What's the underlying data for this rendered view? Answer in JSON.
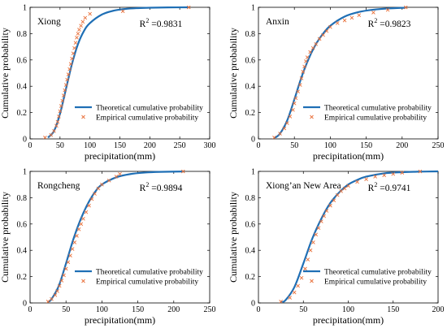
{
  "colors": {
    "theoretical": "#1f6fb5",
    "empirical": "#e8703a",
    "axis": "#000000"
  },
  "legend": {
    "theoretical_label": "Theoretical cumulative probability",
    "empirical_label": "Empirical cumulative probability",
    "placement": "bottom-right"
  },
  "chart_data": [
    {
      "type": "line",
      "title": "Xiong",
      "r2_prefix": "R",
      "r2_sup": "2",
      "r2_value": " =0.9831",
      "xlabel": "precipitation(mm)",
      "ylabel": "Cumulative probability",
      "xlim": [
        0,
        300
      ],
      "ylim": [
        0,
        1
      ],
      "xticks": [
        "0",
        "50",
        "100",
        "150",
        "200",
        "250",
        "300"
      ],
      "yticks": [
        "0",
        "0.2",
        "0.4",
        "0.6",
        "0.8",
        "1"
      ],
      "series": [
        {
          "name": "Theoretical cumulative probability",
          "kind": "line",
          "x": [
            30,
            40,
            50,
            60,
            70,
            80,
            90,
            100,
            120,
            140,
            160,
            180,
            200,
            230,
            265
          ],
          "y": [
            0.01,
            0.06,
            0.19,
            0.38,
            0.57,
            0.72,
            0.82,
            0.88,
            0.945,
            0.975,
            0.988,
            0.994,
            0.997,
            0.999,
            1.0
          ]
        },
        {
          "name": "Empirical cumulative probability",
          "kind": "scatter",
          "x": [
            25,
            35,
            40,
            44,
            46,
            48,
            50,
            52,
            54,
            56,
            58,
            60,
            62,
            64,
            66,
            68,
            70,
            72,
            74,
            76,
            78,
            80,
            82,
            85,
            88,
            92,
            100,
            155,
            265
          ],
          "y": [
            0.01,
            0.03,
            0.06,
            0.1,
            0.13,
            0.17,
            0.21,
            0.25,
            0.29,
            0.33,
            0.37,
            0.41,
            0.45,
            0.49,
            0.53,
            0.57,
            0.61,
            0.65,
            0.69,
            0.73,
            0.77,
            0.8,
            0.83,
            0.86,
            0.89,
            0.92,
            0.95,
            0.97,
            1.0
          ]
        }
      ]
    },
    {
      "type": "line",
      "title": "Anxin",
      "r2_prefix": "R",
      "r2_sup": "2",
      "r2_value": " =0.9823",
      "xlabel": "precipitation(mm)",
      "ylabel": "Cumulative probability",
      "xlim": [
        0,
        250
      ],
      "ylim": [
        0,
        1
      ],
      "xticks": [
        "0",
        "50",
        "100",
        "150",
        "200",
        "250"
      ],
      "yticks": [
        "0",
        "0.2",
        "0.4",
        "0.6",
        "0.8",
        "1"
      ],
      "series": [
        {
          "name": "Theoretical cumulative probability",
          "kind": "line",
          "x": [
            22,
            30,
            40,
            50,
            60,
            70,
            80,
            90,
            100,
            120,
            140,
            160,
            180,
            205
          ],
          "y": [
            0.005,
            0.04,
            0.14,
            0.3,
            0.47,
            0.61,
            0.72,
            0.8,
            0.86,
            0.93,
            0.965,
            0.982,
            0.991,
            0.997
          ]
        },
        {
          "name": "Empirical cumulative probability",
          "kind": "scatter",
          "x": [
            22,
            30,
            36,
            40,
            44,
            48,
            50,
            52,
            55,
            58,
            60,
            62,
            64,
            66,
            68,
            72,
            76,
            80,
            85,
            90,
            95,
            100,
            110,
            120,
            130,
            140,
            160,
            180,
            205
          ],
          "y": [
            0.01,
            0.04,
            0.08,
            0.12,
            0.17,
            0.22,
            0.27,
            0.31,
            0.36,
            0.41,
            0.46,
            0.51,
            0.55,
            0.59,
            0.62,
            0.66,
            0.69,
            0.72,
            0.76,
            0.79,
            0.82,
            0.85,
            0.88,
            0.9,
            0.92,
            0.94,
            0.96,
            0.98,
            1.0
          ]
        }
      ]
    },
    {
      "type": "line",
      "title": "Rongcheng",
      "r2_prefix": "R",
      "r2_sup": "2",
      "r2_value": " =0.9894",
      "xlabel": "precipitation(mm)",
      "ylabel": "Cumulative probability",
      "xlim": [
        0,
        250
      ],
      "ylim": [
        0,
        1
      ],
      "xticks": [
        "0",
        "50",
        "100",
        "150",
        "200",
        "250"
      ],
      "yticks": [
        "0",
        "0.2",
        "0.4",
        "0.6",
        "0.8",
        "1"
      ],
      "series": [
        {
          "name": "Theoretical cumulative probability",
          "kind": "line",
          "x": [
            25,
            30,
            40,
            50,
            60,
            70,
            80,
            90,
            100,
            120,
            140,
            160,
            180,
            213
          ],
          "y": [
            0.005,
            0.03,
            0.13,
            0.3,
            0.48,
            0.63,
            0.75,
            0.84,
            0.9,
            0.955,
            0.98,
            0.991,
            0.996,
            0.999
          ]
        },
        {
          "name": "Empirical cumulative probability",
          "kind": "scatter",
          "x": [
            25,
            30,
            35,
            38,
            41,
            44,
            47,
            50,
            53,
            56,
            59,
            62,
            65,
            68,
            71,
            74,
            78,
            82,
            86,
            90,
            95,
            100,
            110,
            120,
            125,
            213
          ],
          "y": [
            0.01,
            0.03,
            0.06,
            0.09,
            0.13,
            0.17,
            0.21,
            0.26,
            0.31,
            0.36,
            0.41,
            0.46,
            0.51,
            0.56,
            0.6,
            0.64,
            0.69,
            0.74,
            0.79,
            0.83,
            0.87,
            0.9,
            0.93,
            0.96,
            0.98,
            1.0
          ]
        }
      ]
    },
    {
      "type": "line",
      "title": "Xiong’an New Area",
      "r2_prefix": "R",
      "r2_sup": "2",
      "r2_value": " =0.9741",
      "xlabel": "precipitation(mm)",
      "ylabel": "Cumulative probability",
      "xlim": [
        0,
        200
      ],
      "ylim": [
        0,
        1
      ],
      "xticks": [
        "0",
        "50",
        "100",
        "150",
        "200"
      ],
      "yticks": [
        "0",
        "0.2",
        "0.4",
        "0.6",
        "0.8",
        "1"
      ],
      "series": [
        {
          "name": "Theoretical cumulative probability",
          "kind": "line",
          "x": [
            25,
            30,
            40,
            50,
            60,
            70,
            80,
            90,
            100,
            110,
            120,
            140,
            160,
            180,
            200
          ],
          "y": [
            0.005,
            0.02,
            0.12,
            0.3,
            0.49,
            0.64,
            0.76,
            0.84,
            0.9,
            0.935,
            0.96,
            0.985,
            0.994,
            0.998,
            1.0
          ]
        },
        {
          "name": "Empirical cumulative probability",
          "kind": "scatter",
          "x": [
            25,
            35,
            40,
            44,
            48,
            52,
            55,
            58,
            61,
            64,
            67,
            70,
            73,
            76,
            80,
            84,
            88,
            92,
            96,
            100,
            110,
            120,
            130,
            140,
            150,
            160,
            180
          ],
          "y": [
            0.01,
            0.04,
            0.08,
            0.13,
            0.19,
            0.26,
            0.33,
            0.4,
            0.46,
            0.52,
            0.57,
            0.62,
            0.66,
            0.7,
            0.74,
            0.78,
            0.82,
            0.85,
            0.87,
            0.89,
            0.92,
            0.94,
            0.96,
            0.97,
            0.98,
            0.99,
            1.0
          ]
        }
      ]
    }
  ]
}
